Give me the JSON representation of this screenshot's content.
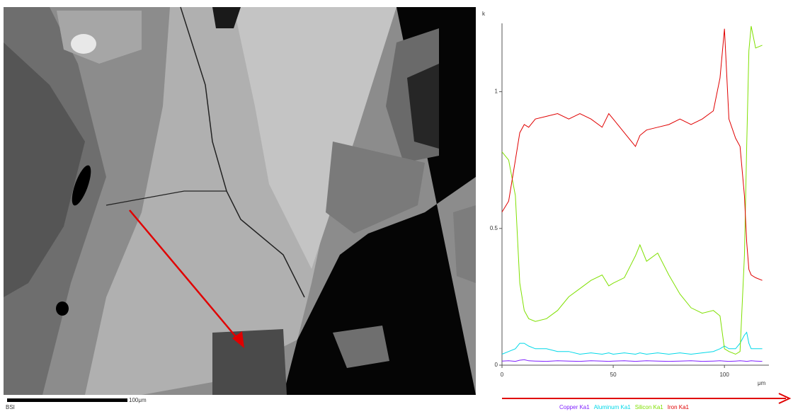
{
  "image": {
    "scale_bar_label": "100μm",
    "detector": "BSI"
  },
  "chart_data": {
    "type": "line",
    "y_label": "k",
    "x_label": "μm",
    "x": [
      0,
      3,
      6,
      8,
      10,
      12,
      15,
      20,
      25,
      30,
      35,
      40,
      45,
      48,
      50,
      55,
      60,
      62,
      65,
      70,
      75,
      80,
      85,
      90,
      95,
      98,
      100,
      102,
      105,
      107,
      109,
      110,
      111,
      112,
      114,
      117
    ],
    "series": [
      {
        "name": "Copper Ka1",
        "color": "#7f1fff",
        "values": [
          0.015,
          0.016,
          0.014,
          0.018,
          0.02,
          0.016,
          0.015,
          0.014,
          0.016,
          0.015,
          0.014,
          0.016,
          0.015,
          0.014,
          0.015,
          0.016,
          0.014,
          0.015,
          0.016,
          0.015,
          0.014,
          0.015,
          0.016,
          0.014,
          0.015,
          0.016,
          0.015,
          0.014,
          0.015,
          0.016,
          0.015,
          0.014,
          0.015,
          0.016,
          0.015,
          0.014
        ]
      },
      {
        "name": "Aluminum Ka1",
        "color": "#00d8e8",
        "values": [
          0.04,
          0.05,
          0.06,
          0.08,
          0.08,
          0.07,
          0.06,
          0.06,
          0.05,
          0.05,
          0.04,
          0.045,
          0.04,
          0.045,
          0.04,
          0.045,
          0.04,
          0.045,
          0.04,
          0.045,
          0.04,
          0.045,
          0.04,
          0.045,
          0.05,
          0.06,
          0.07,
          0.06,
          0.06,
          0.08,
          0.11,
          0.12,
          0.08,
          0.06,
          0.06,
          0.06
        ]
      },
      {
        "name": "Silicon Ka1",
        "color": "#7fe000",
        "values": [
          0.78,
          0.75,
          0.62,
          0.3,
          0.2,
          0.17,
          0.16,
          0.17,
          0.2,
          0.25,
          0.28,
          0.31,
          0.33,
          0.29,
          0.3,
          0.32,
          0.4,
          0.44,
          0.38,
          0.41,
          0.33,
          0.26,
          0.21,
          0.19,
          0.2,
          0.18,
          0.06,
          0.05,
          0.04,
          0.05,
          0.4,
          0.8,
          1.15,
          1.24,
          1.16,
          1.17
        ]
      },
      {
        "name": "Iron Ka1",
        "color": "#e00000",
        "values": [
          0.56,
          0.6,
          0.75,
          0.85,
          0.88,
          0.87,
          0.9,
          0.91,
          0.92,
          0.9,
          0.92,
          0.9,
          0.87,
          0.92,
          0.9,
          0.85,
          0.8,
          0.84,
          0.86,
          0.87,
          0.88,
          0.9,
          0.88,
          0.9,
          0.93,
          1.05,
          1.23,
          0.9,
          0.83,
          0.8,
          0.62,
          0.45,
          0.35,
          0.33,
          0.32,
          0.31
        ]
      }
    ],
    "xlim": [
      0,
      120
    ],
    "ylim": [
      0,
      1.25
    ],
    "xticks": [
      0,
      50,
      100
    ],
    "yticks": [
      0,
      0.5,
      1
    ]
  }
}
